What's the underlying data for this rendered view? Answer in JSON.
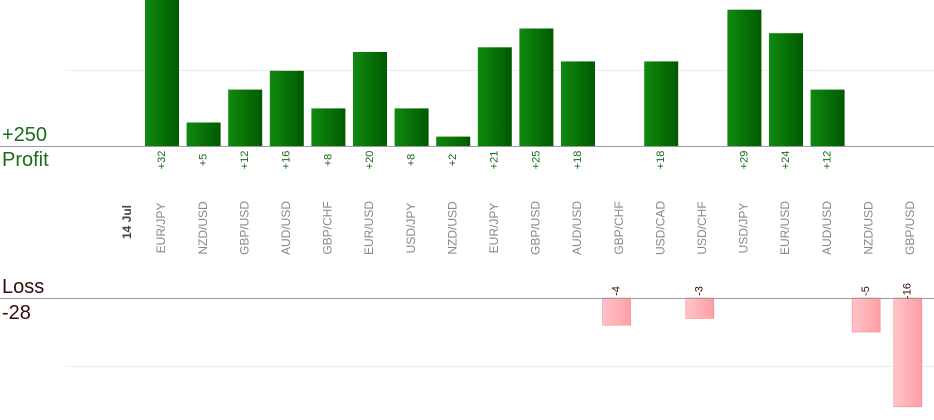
{
  "summary": {
    "profit_total": "+250",
    "profit_label": "Profit",
    "loss_label": "Loss",
    "loss_total": "-28"
  },
  "colors": {
    "profit_bar_dark": "#005a00",
    "profit_bar_light": "#0f8a0f",
    "loss_bar": "#ffb3b8",
    "profit_text": "#1d6b1d",
    "loss_text": "#3a0a0a",
    "category_text": "#888888",
    "date_text": "#444444"
  },
  "chart_data": {
    "type": "bar",
    "date_label": "14 Jul",
    "categories": [
      "EUR/JPY",
      "NZD/USD",
      "GBP/USD",
      "AUD/USD",
      "GBP/CHF",
      "EUR/USD",
      "USD/JPY",
      "NZD/USD",
      "EUR/JPY",
      "GBP/USD",
      "AUD/USD",
      "GBP/CHF",
      "USD/CAD",
      "USD/CHF",
      "USD/JPY",
      "EUR/USD",
      "AUD/USD",
      "NZD/USD",
      "GBP/USD"
    ],
    "series": [
      {
        "name": "",
        "values": [
          32,
          5,
          12,
          16,
          8,
          20,
          8,
          2,
          21,
          25,
          18,
          -4,
          18,
          -3,
          29,
          24,
          12,
          -5,
          -16
        ],
        "labels": [
          "+32",
          "+5",
          "+12",
          "+16",
          "+8",
          "+20",
          "+8",
          "+2",
          "+21",
          "+25",
          "+18",
          "-4",
          "+18",
          "-3",
          "+29",
          "+24",
          "+12",
          "-5",
          "-16"
        ]
      }
    ]
  }
}
